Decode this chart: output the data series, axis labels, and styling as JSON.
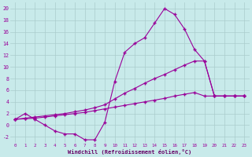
{
  "bg_color": "#c8eaea",
  "grid_color": "#aacccc",
  "line_color": "#990099",
  "xlabel": "Windchill (Refroidissement éolien,°C)",
  "xlabel_color": "#660066",
  "xlim": [
    -0.5,
    23.5
  ],
  "ylim": [
    -3.0,
    21.0
  ],
  "xticks": [
    0,
    1,
    2,
    3,
    4,
    5,
    6,
    7,
    8,
    9,
    10,
    11,
    12,
    13,
    14,
    15,
    16,
    17,
    18,
    19,
    20,
    21,
    22,
    23
  ],
  "yticks": [
    -2,
    0,
    2,
    4,
    6,
    8,
    10,
    12,
    14,
    16,
    18,
    20
  ],
  "line1_x": [
    0,
    1,
    2,
    3,
    4,
    5,
    6,
    7,
    8,
    9,
    10,
    11,
    12,
    13,
    14,
    15,
    16,
    17,
    18,
    19,
    20,
    21,
    22,
    23
  ],
  "line1_y": [
    1.0,
    2.0,
    1.0,
    0.0,
    -1.0,
    -1.5,
    -1.5,
    -2.5,
    -2.5,
    0.5,
    7.5,
    12.5,
    14.0,
    15.0,
    17.5,
    20.0,
    19.0,
    16.5,
    13.0,
    11.0,
    5.0,
    5.0,
    5.0,
    5.0
  ],
  "line2_x": [
    0,
    1,
    2,
    3,
    4,
    5,
    6,
    7,
    8,
    9,
    10,
    11,
    12,
    13,
    14,
    15,
    16,
    17,
    18,
    19,
    20,
    21,
    22,
    23
  ],
  "line2_y": [
    1.0,
    1.2,
    1.4,
    1.6,
    1.8,
    2.0,
    2.3,
    2.6,
    3.0,
    3.5,
    4.5,
    5.5,
    6.3,
    7.2,
    8.0,
    8.7,
    9.5,
    10.3,
    11.0,
    11.0,
    5.0,
    5.0,
    5.0,
    5.0
  ],
  "line3_x": [
    0,
    1,
    2,
    3,
    4,
    5,
    6,
    7,
    8,
    9,
    10,
    11,
    12,
    13,
    14,
    15,
    16,
    17,
    18,
    19,
    20,
    21,
    22,
    23
  ],
  "line3_y": [
    1.0,
    1.1,
    1.2,
    1.4,
    1.6,
    1.8,
    2.0,
    2.2,
    2.5,
    2.8,
    3.1,
    3.4,
    3.7,
    4.0,
    4.3,
    4.6,
    5.0,
    5.3,
    5.6,
    5.0,
    5.0,
    5.0,
    5.0,
    5.0
  ]
}
